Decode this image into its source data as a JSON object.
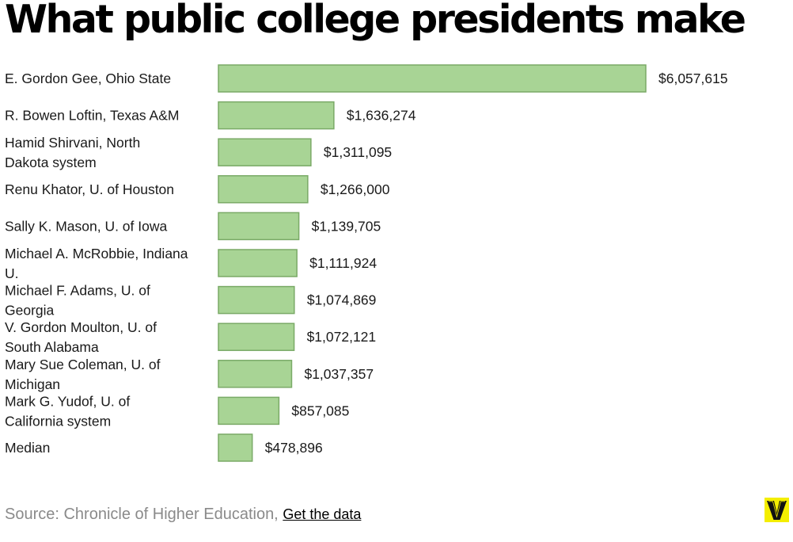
{
  "chart_data": {
    "type": "bar",
    "orientation": "horizontal",
    "title": "What public college presidents make",
    "xlabel": "",
    "ylabel": "",
    "xlim": [
      0,
      6057615
    ],
    "categories": [
      "E. Gordon Gee, Ohio State",
      "R. Bowen Loftin, Texas A&M",
      "Hamid Shirvani, North Dakota system",
      "Renu Khator, U. of Houston",
      "Sally K. Mason, U. of Iowa",
      "Michael A. McRobbie, Indiana U.",
      "Michael F. Adams, U. of Georgia",
      "V. Gordon Moulton, U. of South Alabama",
      "Mary Sue Coleman, U. of Michigan",
      "Mark G. Yudof, U. of California system",
      "Median"
    ],
    "category_lines": [
      [
        "E. Gordon Gee, Ohio State"
      ],
      [
        "R. Bowen Loftin, Texas A&M"
      ],
      [
        "Hamid Shirvani, North",
        "Dakota system"
      ],
      [
        "Renu Khator, U. of Houston"
      ],
      [
        "Sally K. Mason, U. of Iowa"
      ],
      [
        "Michael A. McRobbie, Indiana",
        "U."
      ],
      [
        "Michael F. Adams, U. of",
        "Georgia"
      ],
      [
        "V. Gordon Moulton, U. of",
        "South Alabama"
      ],
      [
        "Mary Sue Coleman, U. of",
        "Michigan"
      ],
      [
        "Mark G. Yudof, U. of",
        "California system"
      ],
      [
        "Median"
      ]
    ],
    "values": [
      6057615,
      1636274,
      1311095,
      1266000,
      1139705,
      1111924,
      1074869,
      1072121,
      1037357,
      857085,
      478896
    ],
    "value_labels": [
      "$6,057,615",
      "$1,636,274",
      "$1,311,095",
      "$1,266,000",
      "$1,139,705",
      "$1,111,924",
      "$1,074,869",
      "$1,072,121",
      "$1,037,357",
      "$857,085",
      "$478,896"
    ],
    "bar_color": "#a8d495",
    "bar_border_color": "#7aaa67"
  },
  "footer": {
    "source_text": "Source: Chronicle of Higher Education,",
    "link_text": "Get the data"
  },
  "brand": {
    "logo_letter": "V",
    "logo_color": "#f4ee00",
    "logo_icon": "vox-logo-icon"
  }
}
